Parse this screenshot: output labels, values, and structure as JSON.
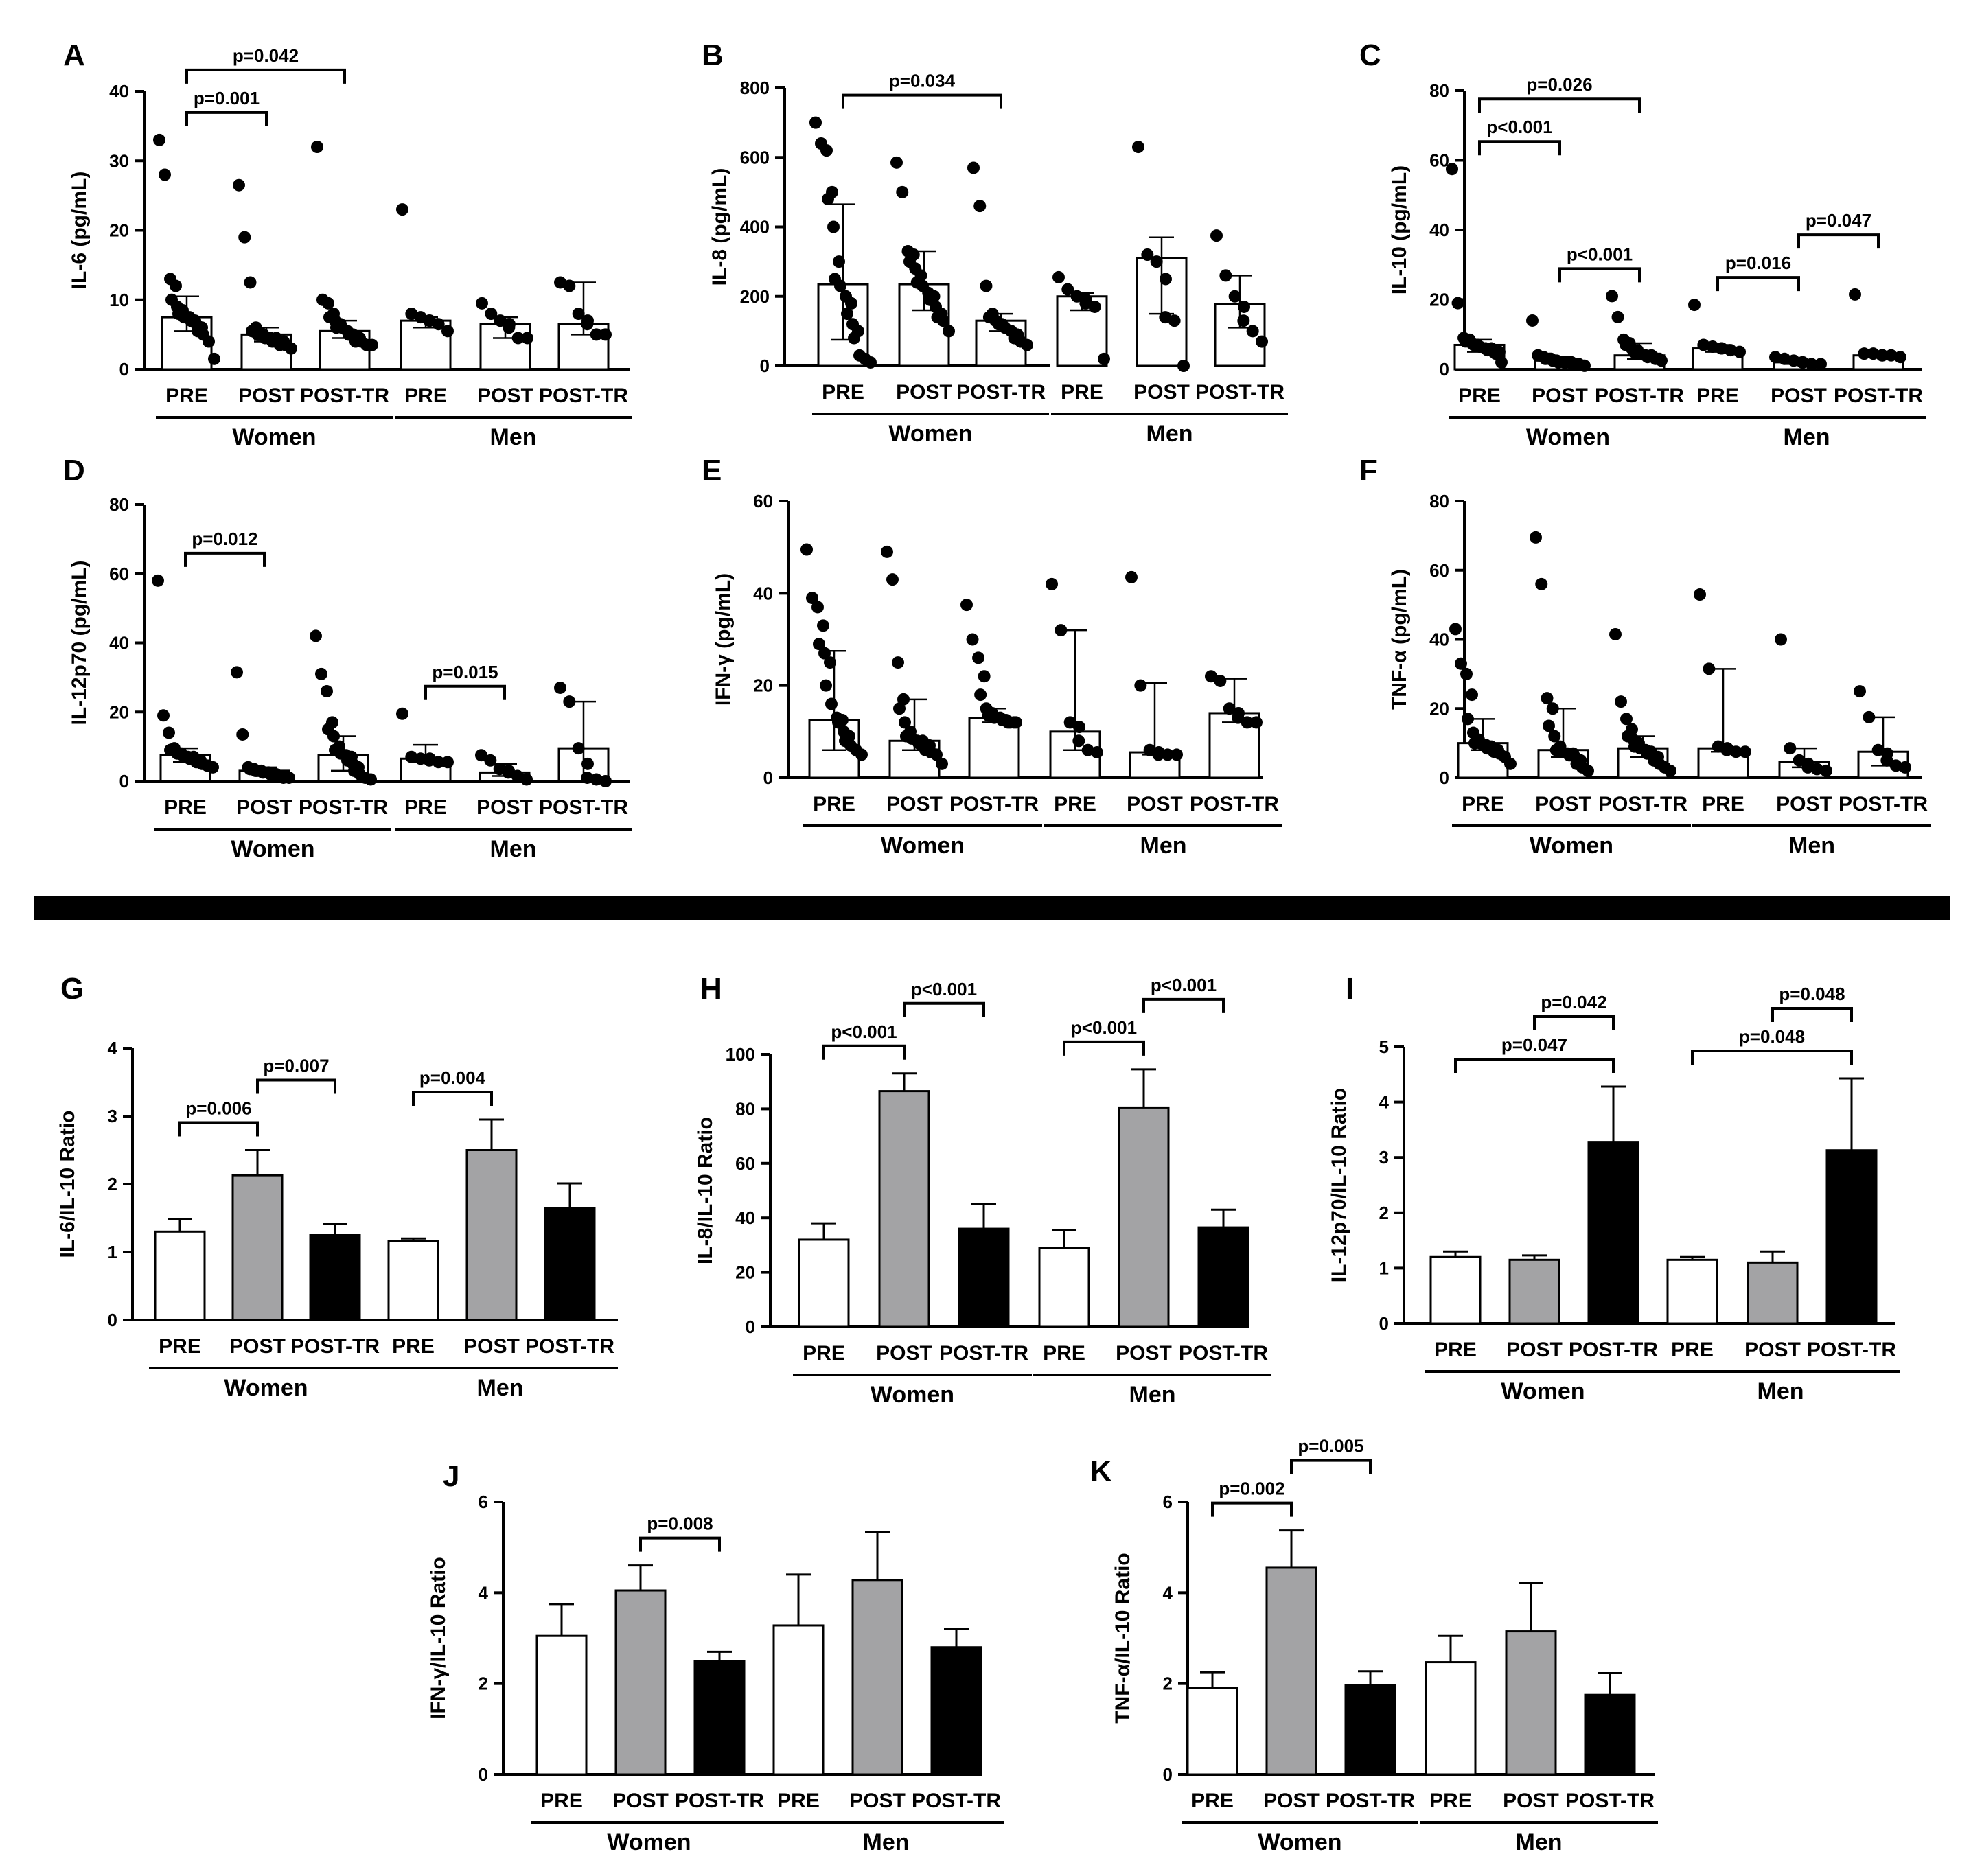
{
  "chart_data": [
    {
      "id": "A",
      "type": "scatter",
      "ylabel": "IL-6 (pg/mL)",
      "ylim": [
        0,
        40
      ],
      "yticks": [
        0,
        10,
        20,
        30,
        40
      ],
      "categories": [
        "PRE",
        "POST",
        "POST-TR",
        "PRE",
        "POST",
        "POST-TR"
      ],
      "groups": [
        "Women",
        "Men"
      ],
      "median": [
        7.5,
        5,
        5.5,
        7,
        6.5,
        6.5
      ],
      "q1": [
        5.5,
        4,
        4.5,
        6,
        4.5,
        5
      ],
      "q3": [
        10.5,
        6,
        7,
        7.5,
        7.5,
        12.5
      ],
      "points": [
        [
          33,
          28,
          13,
          12,
          10,
          9,
          8.5,
          8,
          7.5,
          7.5,
          7,
          7,
          6.5,
          6,
          5.5,
          5,
          4,
          1.5
        ],
        [
          26.5,
          19,
          12.5,
          6,
          5.5,
          5,
          5,
          5,
          4.5,
          4.5,
          4.5,
          4,
          4,
          4,
          3.5,
          3.5,
          3
        ],
        [
          32,
          10,
          9.5,
          8,
          7.5,
          7,
          6.5,
          6,
          6,
          5.5,
          5,
          5,
          4.5,
          4.5,
          4,
          4,
          3.5,
          3.5
        ],
        [
          23,
          8,
          7.5,
          7,
          7,
          6.5,
          5.5
        ],
        [
          9.5,
          8,
          7,
          6.5,
          6,
          4.5,
          4.5
        ],
        [
          12.5,
          12,
          8,
          7,
          6.5,
          5,
          5
        ]
      ],
      "comparisons": [
        {
          "label": "p=0.001",
          "from": 0,
          "to": 1
        },
        {
          "label": "p=0.042",
          "from": 0,
          "to": 2
        }
      ]
    },
    {
      "id": "B",
      "type": "scatter",
      "ylabel": "IL-8 (pg/mL)",
      "ylim": [
        0,
        800
      ],
      "yticks": [
        0,
        200,
        400,
        600,
        800
      ],
      "categories": [
        "PRE",
        "POST",
        "POST-TR",
        "PRE",
        "POST",
        "POST-TR"
      ],
      "groups": [
        "Women",
        "Men"
      ],
      "median": [
        235,
        235,
        130,
        200,
        310,
        178
      ],
      "q1": [
        75,
        160,
        100,
        160,
        150,
        110
      ],
      "q3": [
        465,
        330,
        150,
        210,
        370,
        260
      ],
      "points": [
        [
          700,
          640,
          620,
          500,
          480,
          400,
          300,
          250,
          230,
          200,
          180,
          150,
          120,
          100,
          80,
          30,
          20,
          10
        ],
        [
          585,
          500,
          330,
          320,
          300,
          280,
          260,
          240,
          230,
          210,
          200,
          190,
          170,
          150,
          140,
          130,
          100
        ],
        [
          570,
          460,
          230,
          150,
          140,
          130,
          120,
          120,
          110,
          100,
          90,
          80,
          70,
          60
        ],
        [
          255,
          220,
          200,
          190,
          180,
          170,
          20
        ],
        [
          630,
          320,
          300,
          250,
          140,
          130,
          0
        ],
        [
          375,
          260,
          200,
          170,
          130,
          100,
          70
        ]
      ],
      "comparisons": [
        {
          "label": "p=0.034",
          "from": 0,
          "to": 2
        }
      ]
    },
    {
      "id": "C",
      "type": "scatter",
      "ylabel": "IL-10 (pg/mL)",
      "ylim": [
        0,
        80
      ],
      "yticks": [
        0,
        20,
        40,
        60,
        80
      ],
      "categories": [
        "PRE",
        "POST",
        "POST-TR",
        "PRE",
        "POST",
        "POST-TR"
      ],
      "groups": [
        "Women",
        "Men"
      ],
      "median": [
        7,
        2.5,
        4,
        6,
        2,
        4
      ],
      "q1": [
        5,
        2,
        3,
        5,
        1.5,
        3.5
      ],
      "q3": [
        8.5,
        3.5,
        7.5,
        7,
        2.5,
        4.5
      ],
      "points": [
        [
          57.5,
          19,
          9,
          8.5,
          8,
          7.5,
          7,
          7,
          6.5,
          6,
          6,
          5.5,
          5,
          5,
          4.5,
          2
        ],
        [
          14,
          4,
          3.5,
          3,
          3,
          3,
          2.5,
          2.5,
          2,
          2,
          2,
          2,
          2,
          1.5,
          1.5,
          1.5,
          1
        ],
        [
          21,
          15,
          8.5,
          7.5,
          7,
          6,
          5.5,
          5,
          4.5,
          4,
          4,
          3.5,
          3.5,
          3,
          3,
          2.5
        ],
        [
          18.5,
          7,
          6.5,
          6,
          6,
          5.5,
          5
        ],
        [
          3.5,
          3,
          2.5,
          2,
          2,
          1.5,
          1.5
        ],
        [
          21.5,
          4.5,
          4.5,
          4,
          4,
          4,
          3.5
        ]
      ],
      "comparisons": [
        {
          "label": "p<0.001",
          "from": 0,
          "to": 1
        },
        {
          "label": "p=0.026",
          "from": 0,
          "to": 2
        },
        {
          "label": "p<0.001",
          "from": 1,
          "to": 2
        },
        {
          "label": "p=0.016",
          "from": 3,
          "to": 4
        },
        {
          "label": "p=0.047",
          "from": 4,
          "to": 5
        }
      ]
    },
    {
      "id": "D",
      "type": "scatter",
      "ylabel": "IL-12p70 (pg/mL)",
      "ylim": [
        0,
        80
      ],
      "yticks": [
        0,
        20,
        40,
        60,
        80
      ],
      "categories": [
        "PRE",
        "POST",
        "POST-TR",
        "PRE",
        "POST",
        "POST-TR"
      ],
      "groups": [
        "Women",
        "Men"
      ],
      "median": [
        7.5,
        3,
        7.5,
        6.5,
        2.5,
        9.5
      ],
      "q1": [
        5.5,
        2,
        3,
        5.5,
        1.5,
        0
      ],
      "q3": [
        9.5,
        4,
        13,
        10.5,
        5,
        23
      ],
      "points": [
        [
          58,
          19,
          14,
          9.5,
          9,
          8.5,
          8,
          8,
          7.5,
          7,
          7,
          6.5,
          6,
          6,
          5.5,
          5,
          4.5,
          4
        ],
        [
          31.5,
          13.5,
          4,
          3.5,
          3.5,
          3,
          3,
          3,
          2.5,
          2.5,
          2,
          2,
          2,
          1.5,
          1.5,
          1,
          1
        ],
        [
          42,
          31,
          26,
          17,
          15,
          13,
          10,
          9,
          8,
          7.5,
          7,
          6,
          5,
          4,
          3,
          2,
          1,
          0.5
        ],
        [
          19.5,
          7,
          6.5,
          6.5,
          6,
          5.5,
          5.5
        ],
        [
          7.5,
          6,
          3.5,
          3,
          2.5,
          1.5,
          0.5
        ],
        [
          27,
          23,
          9.5,
          5,
          1,
          0.5,
          0
        ]
      ],
      "comparisons": [
        {
          "label": "p=0.012",
          "from": 0,
          "to": 1
        },
        {
          "label": "p=0.015",
          "from": 3,
          "to": 4
        }
      ]
    },
    {
      "id": "E",
      "type": "scatter",
      "ylabel": "IFN-γ (pg/mL)",
      "ylim": [
        0,
        60
      ],
      "yticks": [
        0,
        20,
        40,
        60
      ],
      "categories": [
        "PRE",
        "POST",
        "POST-TR",
        "PRE",
        "POST",
        "POST-TR"
      ],
      "groups": [
        "Women",
        "Men"
      ],
      "median": [
        12.5,
        8,
        13,
        10,
        5.5,
        14
      ],
      "q1": [
        6,
        6,
        12,
        6,
        5,
        12
      ],
      "q3": [
        27.5,
        17,
        15,
        32,
        20.5,
        21.5
      ],
      "points": [
        [
          49.5,
          39,
          37,
          33,
          29,
          27,
          25,
          20,
          16,
          13,
          12.5,
          12,
          10,
          9,
          8,
          7,
          6,
          5
        ],
        [
          49,
          43,
          25,
          17,
          15,
          12,
          10,
          9,
          8.5,
          8,
          8,
          7.5,
          7,
          7,
          6,
          5.5,
          5,
          3
        ],
        [
          37.5,
          30,
          26,
          22,
          18,
          15,
          14,
          13.5,
          13,
          13,
          12.5,
          12.5,
          12,
          12,
          12,
          12
        ],
        [
          42,
          32,
          12,
          11,
          8,
          6,
          5.5
        ],
        [
          43.5,
          20,
          6,
          5.5,
          5,
          5,
          5
        ],
        [
          22,
          21,
          15,
          14,
          13,
          12,
          12
        ]
      ],
      "comparisons": []
    },
    {
      "id": "F",
      "type": "scatter",
      "ylabel": "TNF-α (pg/mL)",
      "ylim": [
        0,
        80
      ],
      "yticks": [
        0,
        20,
        40,
        60,
        80
      ],
      "categories": [
        "PRE",
        "POST",
        "POST-TR",
        "PRE",
        "POST",
        "POST-TR"
      ],
      "groups": [
        "Women",
        "Men"
      ],
      "median": [
        10,
        8,
        8.5,
        8.5,
        4.5,
        7.5
      ],
      "q1": [
        8,
        6,
        6,
        7.5,
        3,
        3.5
      ],
      "q3": [
        17,
        20,
        12,
        31.5,
        8.5,
        17.5
      ],
      "points": [
        [
          43,
          33,
          30,
          24,
          17,
          13,
          11,
          10,
          10,
          9.5,
          9,
          8.5,
          8,
          8,
          7.5,
          7,
          6,
          4
        ],
        [
          69.5,
          56,
          23,
          20,
          15,
          12,
          9,
          8,
          7.5,
          7,
          7,
          6.5,
          6,
          5,
          4,
          3,
          2
        ],
        [
          41.5,
          22,
          17,
          14,
          12,
          11,
          10,
          9,
          8.5,
          8,
          7.5,
          7,
          6.5,
          6,
          5,
          4,
          3,
          2
        ],
        [
          53,
          31.5,
          9,
          8.5,
          8,
          7.5,
          7.5
        ],
        [
          40,
          8.5,
          5,
          4,
          3,
          2.5,
          2
        ],
        [
          25,
          17.5,
          8,
          7,
          5,
          3.5,
          3
        ]
      ],
      "comparisons": []
    },
    {
      "id": "G",
      "type": "bar",
      "ylabel": "IL-6/IL-10 Ratio",
      "ylim": [
        0,
        4
      ],
      "yticks": [
        0,
        1,
        2,
        3,
        4
      ],
      "categories": [
        "PRE",
        "POST",
        "POST-TR",
        "PRE",
        "POST",
        "POST-TR"
      ],
      "groups": [
        "Women",
        "Men"
      ],
      "values": [
        1.3,
        2.13,
        1.25,
        1.16,
        2.5,
        1.65
      ],
      "errors": [
        0.18,
        0.37,
        0.16,
        0.04,
        0.45,
        0.36
      ],
      "comparisons": [
        {
          "label": "p=0.006",
          "from": 0,
          "to": 1
        },
        {
          "label": "p=0.007",
          "from": 1,
          "to": 2
        },
        {
          "label": "p=0.004",
          "from": 3,
          "to": 4
        }
      ]
    },
    {
      "id": "H",
      "type": "bar",
      "ylabel": "IL-8/IL-10 Ratio",
      "ylim": [
        0,
        100
      ],
      "yticks": [
        0,
        20,
        40,
        60,
        80,
        100
      ],
      "categories": [
        "PRE",
        "POST",
        "POST-TR",
        "PRE",
        "POST",
        "POST-TR"
      ],
      "groups": [
        "Women",
        "Men"
      ],
      "values": [
        32,
        86.5,
        36,
        29,
        80.5,
        36.5
      ],
      "errors": [
        6,
        6.5,
        9,
        6.5,
        14,
        6.5
      ],
      "comparisons": [
        {
          "label": "p<0.001",
          "from": 0,
          "to": 1
        },
        {
          "label": "p<0.001",
          "from": 1,
          "to": 2
        },
        {
          "label": "p<0.001",
          "from": 3,
          "to": 4
        },
        {
          "label": "p<0.001",
          "from": 4,
          "to": 5
        }
      ]
    },
    {
      "id": "I",
      "type": "bar",
      "ylabel": "IL-12p70/IL-10 Ratio",
      "ylim": [
        0,
        5
      ],
      "yticks": [
        0,
        1,
        2,
        3,
        4,
        5
      ],
      "categories": [
        "PRE",
        "POST",
        "POST-TR",
        "PRE",
        "POST",
        "POST-TR"
      ],
      "groups": [
        "Women",
        "Men"
      ],
      "values": [
        1.2,
        1.15,
        3.28,
        1.15,
        1.1,
        3.13
      ],
      "errors": [
        0.1,
        0.08,
        1.0,
        0.05,
        0.2,
        1.3
      ],
      "comparisons": [
        {
          "label": "p=0.047",
          "from": 0,
          "to": 2
        },
        {
          "label": "p=0.042",
          "from": 1,
          "to": 2
        },
        {
          "label": "p=0.048",
          "from": 3,
          "to": 5
        },
        {
          "label": "p=0.048",
          "from": 4,
          "to": 5
        }
      ]
    },
    {
      "id": "J",
      "type": "bar",
      "ylabel": "IFN-γ/IL-10 Ratio",
      "ylim": [
        0,
        6
      ],
      "yticks": [
        0,
        2,
        4,
        6
      ],
      "categories": [
        "PRE",
        "POST",
        "POST-TR",
        "PRE",
        "POST",
        "POST-TR"
      ],
      "groups": [
        "Women",
        "Men"
      ],
      "values": [
        3.05,
        4.05,
        2.5,
        3.28,
        4.28,
        2.8
      ],
      "errors": [
        0.7,
        0.55,
        0.2,
        1.12,
        1.05,
        0.4
      ],
      "comparisons": [
        {
          "label": "p=0.008",
          "from": 1,
          "to": 2
        }
      ]
    },
    {
      "id": "K",
      "type": "bar",
      "ylabel": "TNF-α/IL-10 Ratio",
      "ylim": [
        0,
        6
      ],
      "yticks": [
        0,
        2,
        4,
        6
      ],
      "categories": [
        "PRE",
        "POST",
        "POST-TR",
        "PRE",
        "POST",
        "POST-TR"
      ],
      "groups": [
        "Women",
        "Men"
      ],
      "values": [
        1.9,
        4.55,
        1.97,
        2.47,
        3.15,
        1.75
      ],
      "errors": [
        0.35,
        0.82,
        0.3,
        0.58,
        1.07,
        0.48
      ],
      "comparisons": [
        {
          "label": "p=0.002",
          "from": 0,
          "to": 1
        },
        {
          "label": "p=0.005",
          "from": 1,
          "to": 2
        }
      ]
    }
  ],
  "colors": {
    "PRE": "#ffffff",
    "POST": "#a3a3a5",
    "POST-TR": "#000000",
    "ink": "#000000"
  }
}
